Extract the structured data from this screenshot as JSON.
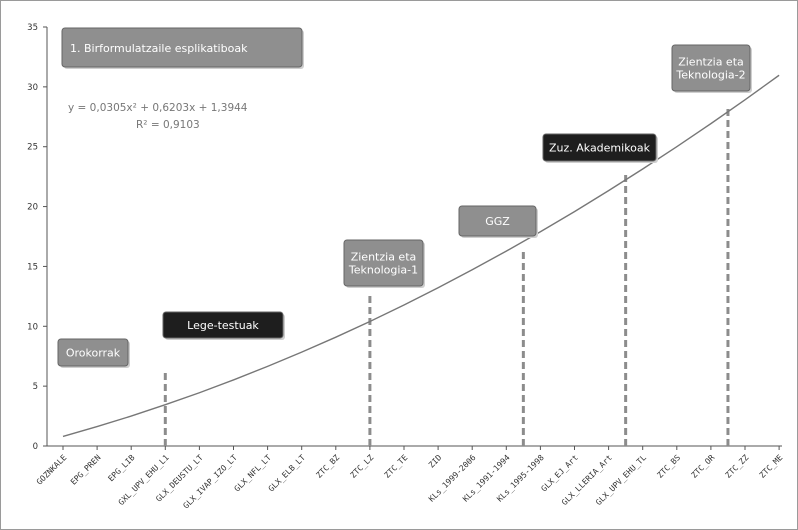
{
  "chart_data": {
    "type": "line",
    "title": "",
    "xlabel": "",
    "ylabel": "",
    "ylim": [
      0,
      35
    ],
    "yticks": [
      0,
      5,
      10,
      15,
      20,
      25,
      30,
      35
    ],
    "grid": false,
    "categories": [
      "GOZNKALE",
      "EPG_PREN",
      "EPG_LIB",
      "GXL_UPV_EHU_L1",
      "GLX_DEUSTU_LT",
      "GLX_IVAP_IZO_LT",
      "GLX_NFL_LT",
      "GLX_ELB_LT",
      "ZTC_BZ",
      "ZTC_LZ",
      "ZTC_TE",
      "ZID",
      "KLs_1999-2006",
      "KLs_1991-1994",
      "KLs_1995-1998",
      "GLX_EJ_Art",
      "GLX_LLERIA_Art",
      "GLX_UPV_EHU_TL",
      "ZTC_BS",
      "ZTC_OR",
      "ZTC_ZZ",
      "ZTC_ME"
    ],
    "series": [
      {
        "values": [
          0.8,
          1.62,
          2.5,
          3.45,
          4.45,
          5.52,
          6.65,
          7.84,
          9.09,
          10.4,
          11.78,
          13.22,
          14.72,
          16.28,
          17.9,
          19.58,
          21.33,
          23.14,
          25.0,
          26.93,
          28.92,
          30.97
        ]
      }
    ],
    "equation_line1": "y = 0,0305x² + 0,6203x + 1,3944",
    "equation_line2": "R² = 0,9103",
    "dividers": [
      {
        "x": 3,
        "top": 6.2
      },
      {
        "x": 9,
        "top": 12.8
      },
      {
        "x": 13.5,
        "top": 16.3
      },
      {
        "x": 16.5,
        "top": 22.7
      },
      {
        "x": 19.5,
        "top": 28.3
      }
    ],
    "annotations": [
      {
        "text": "1. Birformulatzaile esplikatiboak",
        "style": "gray"
      },
      {
        "text": "Orokorrak",
        "style": "gray"
      },
      {
        "text": "Lege-testuak",
        "style": "black"
      },
      {
        "text": "Zientzia eta\nTeknologia-1",
        "style": "gray"
      },
      {
        "text": "GGZ",
        "style": "gray"
      },
      {
        "text": "Zuz. Akademikoak",
        "style": "black"
      },
      {
        "text": "Zientzia eta\nTeknologia-2",
        "style": "gray"
      }
    ],
    "colors": {
      "line": "#777777",
      "divider": "#8c8c8c",
      "box_gray": "#8f8f8f",
      "box_black": "#1e1e1e",
      "box_border": "#666666"
    }
  }
}
